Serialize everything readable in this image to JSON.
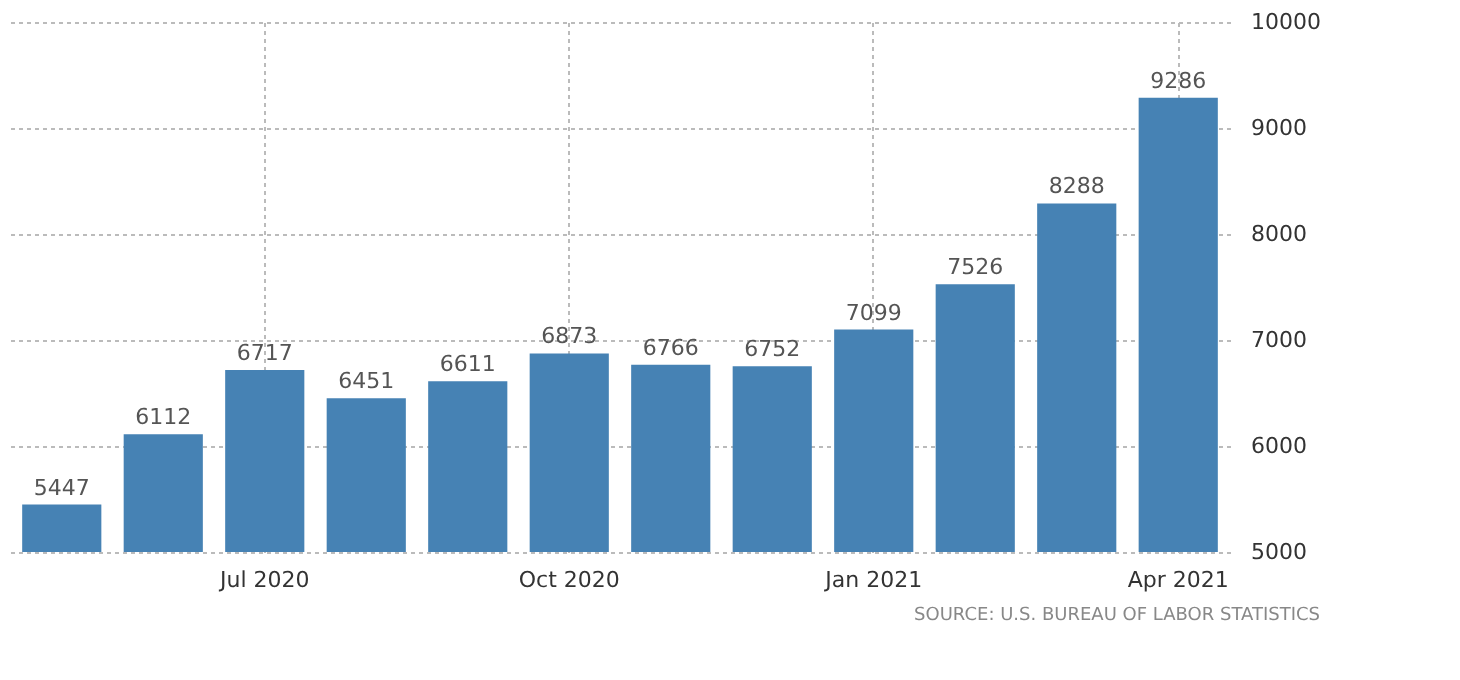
{
  "chart_data": {
    "type": "bar",
    "categories": [
      null,
      null,
      "Jul 2020",
      null,
      null,
      "Oct 2020",
      null,
      null,
      "Jan 2021",
      null,
      null,
      "Apr 2021"
    ],
    "values": [
      5447,
      6112,
      6717,
      6451,
      6611,
      6873,
      6766,
      6752,
      7099,
      7526,
      8288,
      9286
    ],
    "color": "#4682b4",
    "ylim": [
      5000,
      10000
    ],
    "yticks": [
      5000,
      6000,
      7000,
      8000,
      9000,
      10000
    ],
    "grid": true,
    "data_labels": true,
    "annotations": [
      "SOURCE: U.S. BUREAU OF LABOR STATISTICS"
    ]
  }
}
